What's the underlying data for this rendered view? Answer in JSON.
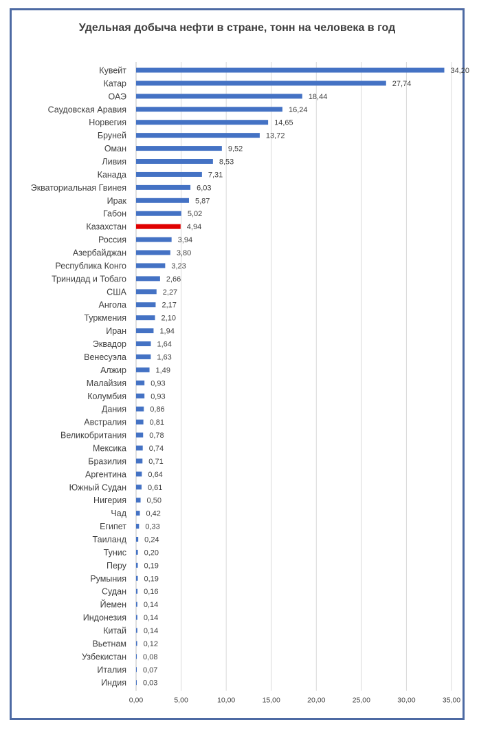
{
  "chart_data": {
    "type": "bar",
    "orientation": "horizontal",
    "title": "Удельная добыча нефти в стране, тонн на человека в год",
    "xlabel": "",
    "ylabel": "",
    "xlim": [
      0,
      35
    ],
    "x_ticks": [
      "0,00",
      "5,00",
      "10,00",
      "15,00",
      "20,00",
      "25,00",
      "30,00",
      "35,00"
    ],
    "grid": true,
    "legend": "none",
    "bar_color": "#4472c4",
    "highlight_color": "#e00000",
    "highlight_category": "Казахстан",
    "categories": [
      "Кувейт",
      "Катар",
      "ОАЭ",
      "Саудовская Аравия",
      "Норвегия",
      "Бруней",
      "Оман",
      "Ливия",
      "Канада",
      "Экваториальная Гвинея",
      "Ирак",
      "Габон",
      "Казахстан",
      "Россия",
      "Азербайджан",
      "Республика Конго",
      "Тринидад и Тобаго",
      "США",
      "Ангола",
      "Туркмения",
      "Иран",
      "Эквадор",
      "Венесуэла",
      "Алжир",
      "Малайзия",
      "Колумбия",
      "Дания",
      "Австралия",
      "Великобритания",
      "Мексика",
      "Бразилия",
      "Аргентина",
      "Южный Судан",
      "Нигерия",
      "Чад",
      "Египет",
      "Таиланд",
      "Тунис",
      "Перу",
      "Румыния",
      "Судан",
      "Йемен",
      "Индонезия",
      "Китай",
      "Вьетнам",
      "Узбекистан",
      "Италия",
      "Индия"
    ],
    "values": [
      34.2,
      27.74,
      18.44,
      16.24,
      14.65,
      13.72,
      9.52,
      8.53,
      7.31,
      6.03,
      5.87,
      5.02,
      4.94,
      3.94,
      3.8,
      3.23,
      2.66,
      2.27,
      2.17,
      2.1,
      1.94,
      1.64,
      1.63,
      1.49,
      0.93,
      0.93,
      0.86,
      0.81,
      0.78,
      0.74,
      0.71,
      0.64,
      0.61,
      0.5,
      0.42,
      0.33,
      0.24,
      0.2,
      0.19,
      0.19,
      0.16,
      0.14,
      0.14,
      0.14,
      0.12,
      0.08,
      0.07,
      0.03
    ],
    "value_labels": [
      "34,20",
      "27,74",
      "18,44",
      "16,24",
      "14,65",
      "13,72",
      "9,52",
      "8,53",
      "7,31",
      "6,03",
      "5,87",
      "5,02",
      "4,94",
      "3,94",
      "3,80",
      "3,23",
      "2,66",
      "2,27",
      "2,17",
      "2,10",
      "1,94",
      "1,64",
      "1,63",
      "1,49",
      "0,93",
      "0,93",
      "0,86",
      "0,81",
      "0,78",
      "0,74",
      "0,71",
      "0,64",
      "0,61",
      "0,50",
      "0,42",
      "0,33",
      "0,24",
      "0,20",
      "0,19",
      "0,19",
      "0,16",
      "0,14",
      "0,14",
      "0,14",
      "0,12",
      "0,08",
      "0,07",
      "0,03"
    ]
  }
}
